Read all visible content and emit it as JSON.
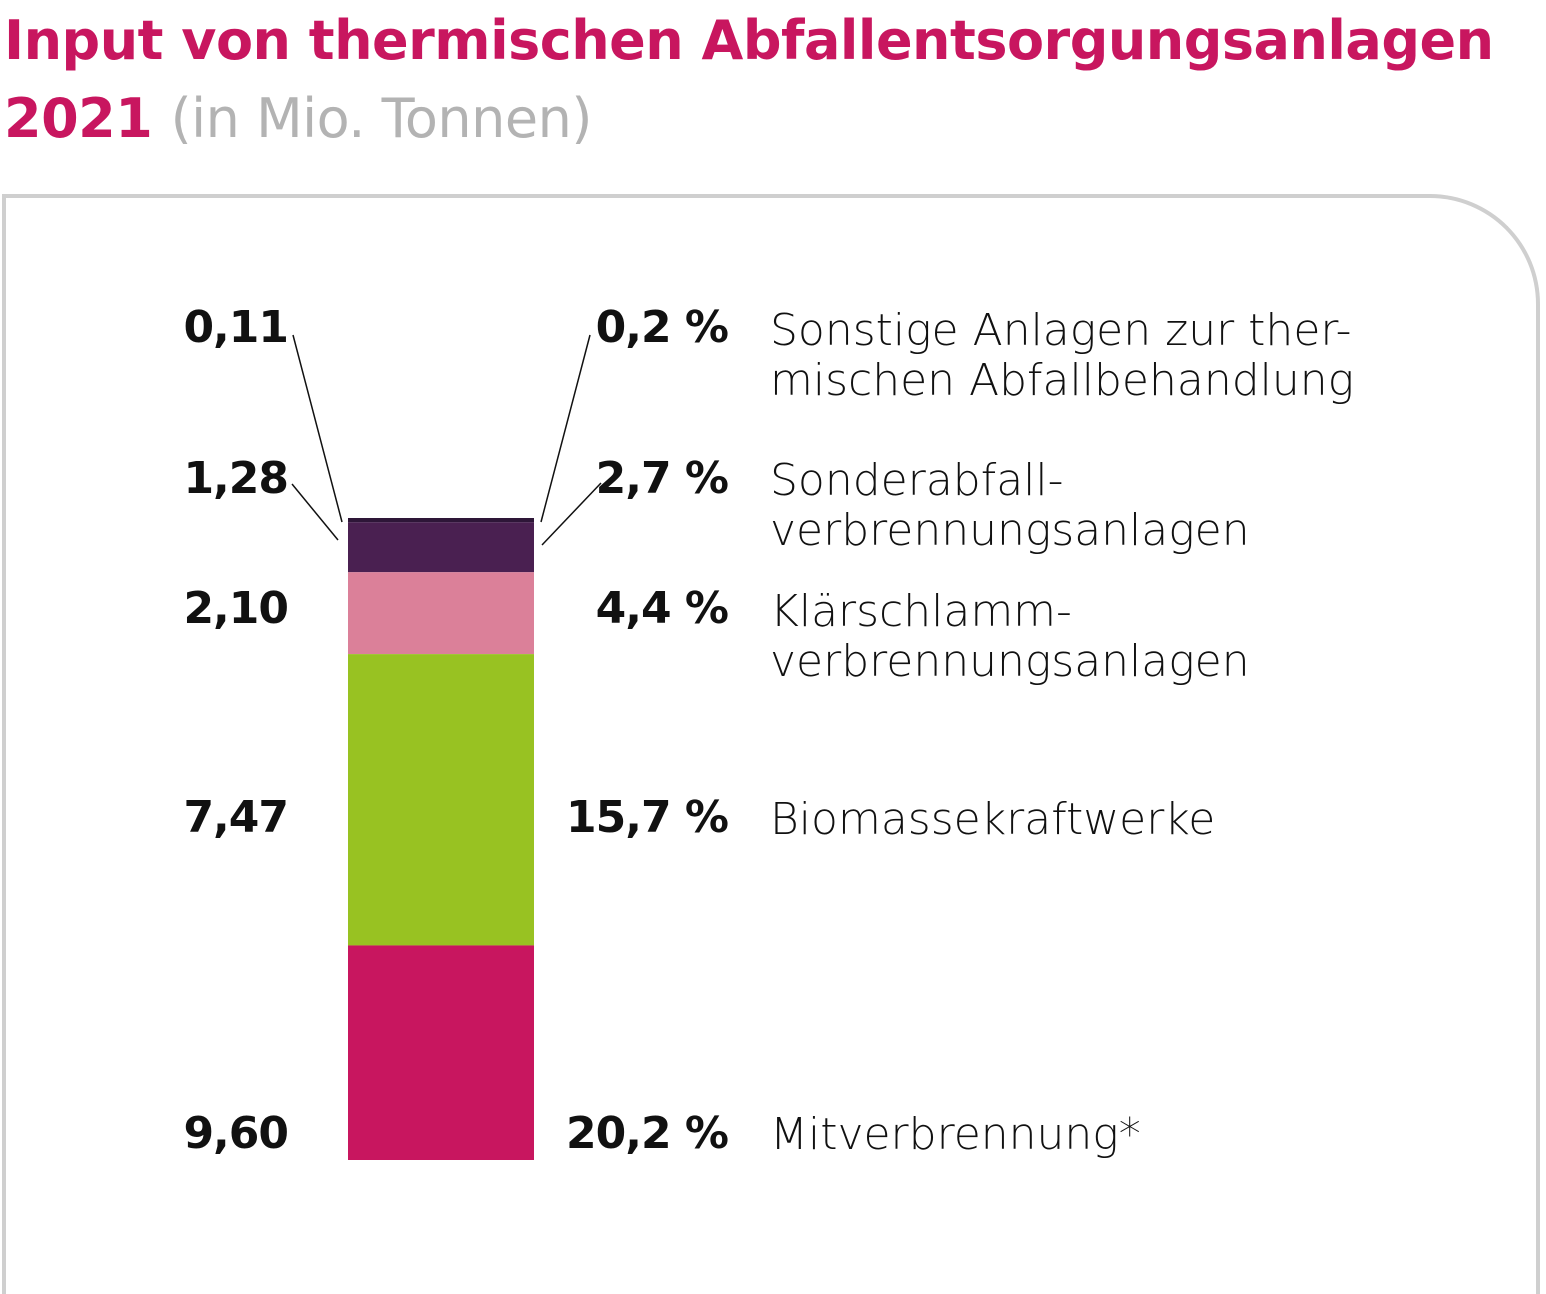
{
  "chart_data": {
    "type": "bar",
    "stacked": true,
    "title": "Input von thermischen Abfallentsorgungsanlagen 2021",
    "title_line1": "Input von thermischen Abfallentsorgungsanlagen",
    "title_year": "2021",
    "unit": "(in Mio. Tonnen)",
    "segments": [
      {
        "name": "Sonstige Anlagen zur ther-\nmischen Abfallbehandlung",
        "value": 0.11,
        "value_label": "0,11",
        "percent": 0.2,
        "percent_label": "0,2 %",
        "color": "#2e1638"
      },
      {
        "name": "Sonderabfall-\nverbrennungsanlagen",
        "value": 1.28,
        "value_label": "1,28",
        "percent": 2.7,
        "percent_label": "2,7 %",
        "color": "#4a2051"
      },
      {
        "name": "Klärschlamm-\nverbrennungsanlagen",
        "value": 2.1,
        "value_label": "2,10",
        "percent": 4.4,
        "percent_label": "4,4 %",
        "color": "#db8099"
      },
      {
        "name": "Biomassekraftwerke",
        "value": 7.47,
        "value_label": "7,47",
        "percent": 15.7,
        "percent_label": "15,7 %",
        "color": "#98c222"
      },
      {
        "name": "Mitverbrennung*",
        "value": 9.6,
        "value_label": "9,60",
        "percent": 20.2,
        "percent_label": "20,2 %",
        "color": "#c8165f"
      }
    ]
  }
}
